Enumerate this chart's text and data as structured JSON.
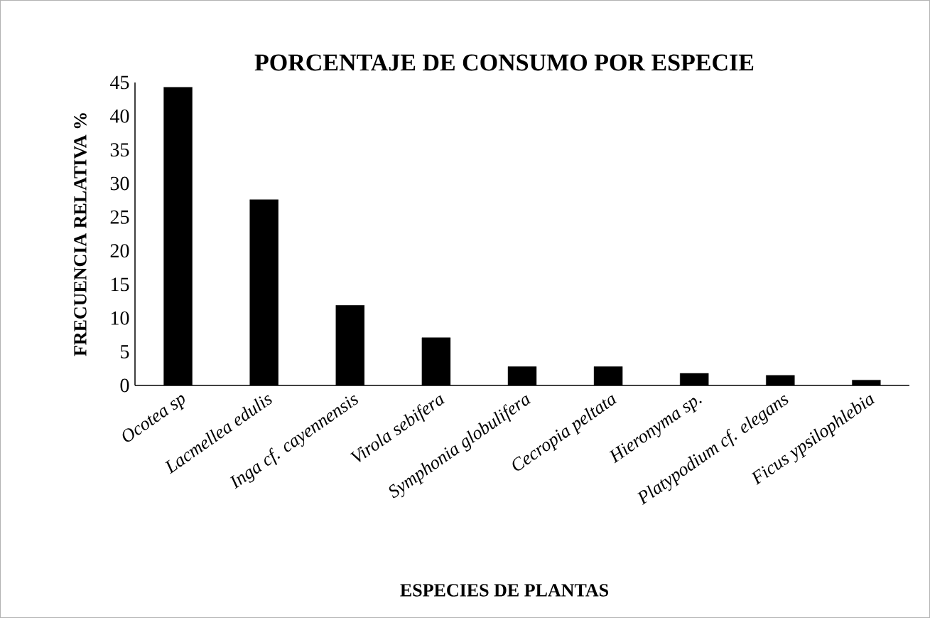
{
  "chart_data": {
    "type": "bar",
    "title": "PORCENTAJE DE CONSUMO POR ESPECIE",
    "xlabel": "ESPECIES DE PLANTAS",
    "ylabel": "FRECUENCIA RELATIVA %",
    "categories": [
      "Ocotea sp",
      "Lacmellea edulis",
      "Inga cf. cayennensis",
      "Virola sebifera",
      "Symphonia globulifera",
      "Cecropia peltata",
      "Hieronyma sp.",
      "Platypodium cf. elegans",
      "Ficus ypsilophlebia"
    ],
    "values": [
      44.3,
      27.6,
      11.9,
      7.1,
      2.8,
      2.8,
      1.8,
      1.5,
      0.8
    ],
    "color": "#000000",
    "ylim": [
      0,
      45
    ],
    "yticks": [
      0,
      5,
      10,
      15,
      20,
      25,
      30,
      35,
      40,
      45
    ]
  }
}
